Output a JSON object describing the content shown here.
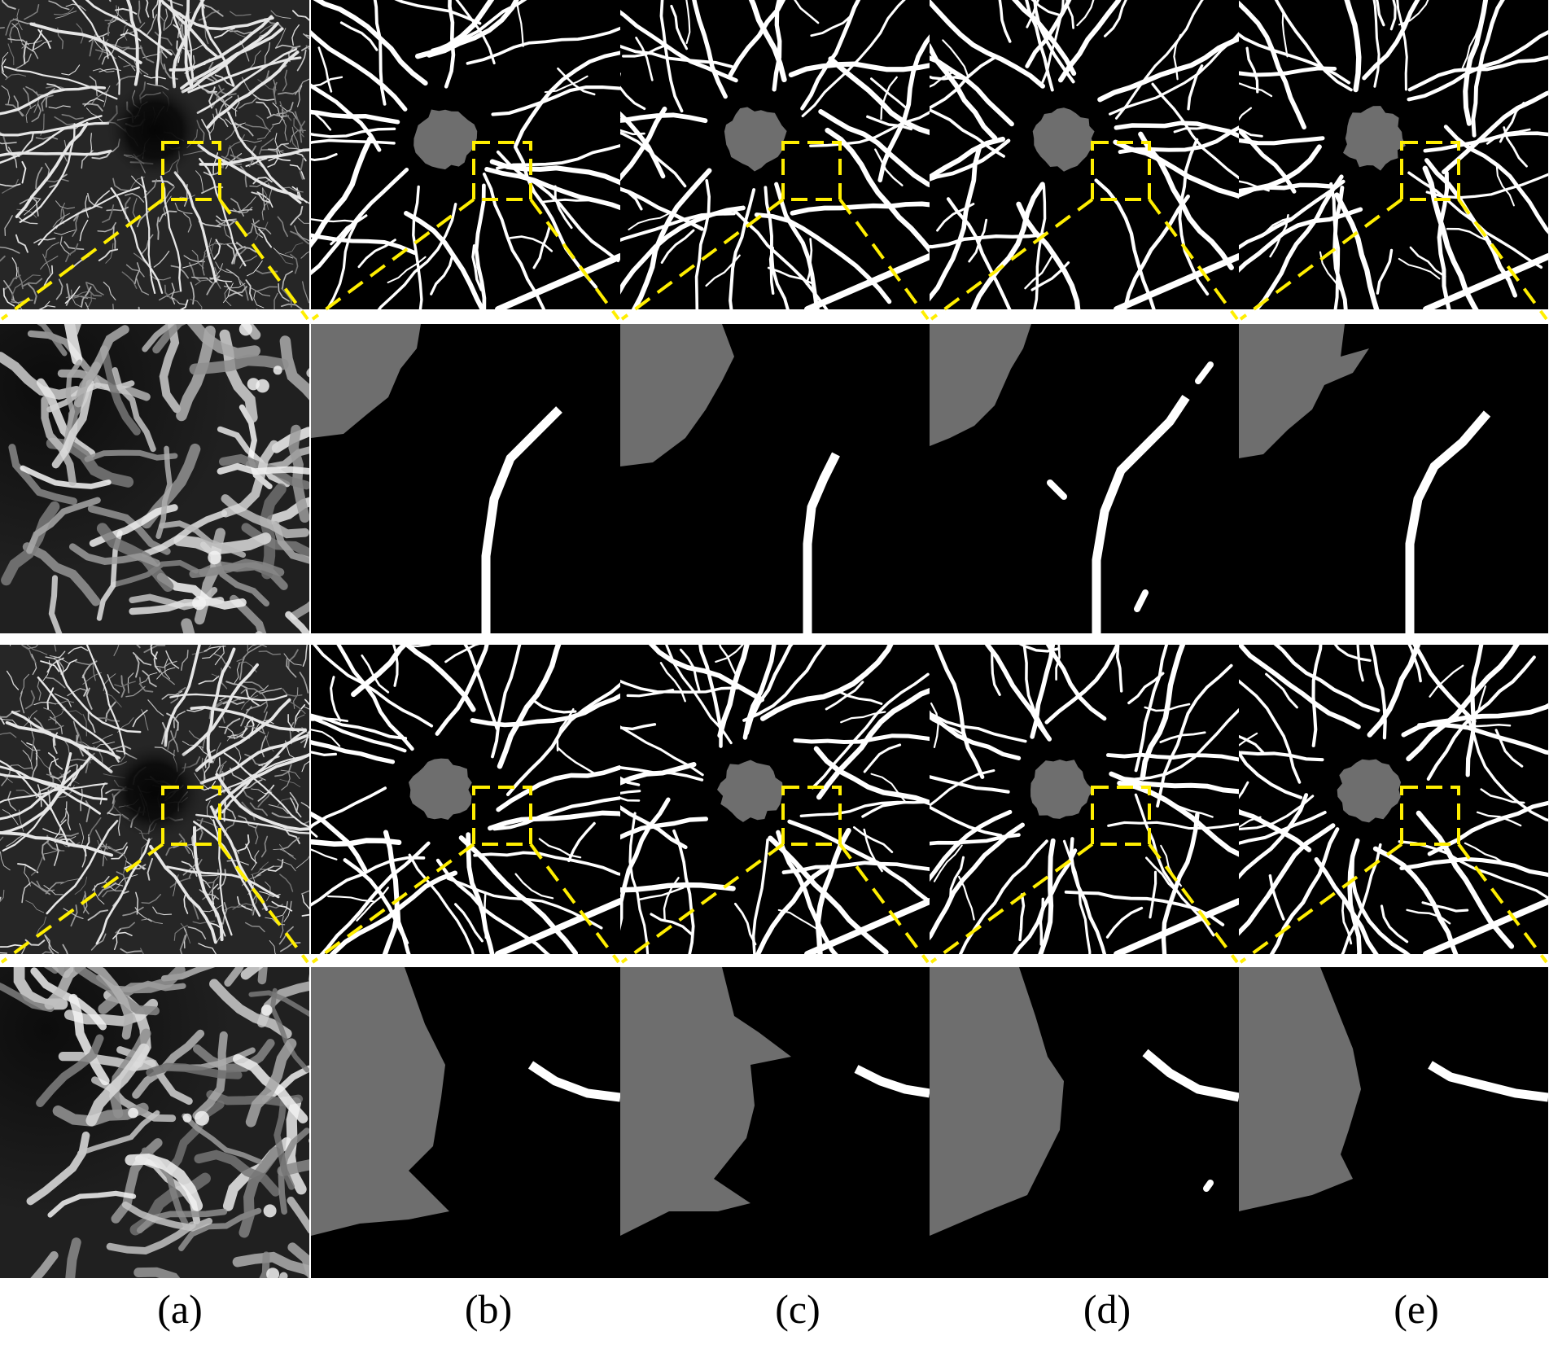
{
  "colors": {
    "background": "#ffffff",
    "panel": "#000000",
    "vessel": "#ffffff",
    "faz": "#6e6e6e",
    "highlight_box": "#ffee00"
  },
  "rows": [
    {
      "name": "case-1-full",
      "kind": "overview",
      "columns": [
        "a",
        "b",
        "c",
        "d",
        "e"
      ]
    },
    {
      "name": "case-1-zoom",
      "kind": "zoom",
      "columns": [
        "a",
        "b",
        "c",
        "d",
        "e"
      ]
    },
    {
      "name": "case-2-full",
      "kind": "overview",
      "columns": [
        "a",
        "b",
        "c",
        "d",
        "e"
      ]
    },
    {
      "name": "case-2-zoom",
      "kind": "zoom",
      "columns": [
        "a",
        "b",
        "c",
        "d",
        "e"
      ]
    }
  ],
  "columns": [
    {
      "id": "a",
      "content": "OCTA image",
      "caption": "(a)"
    },
    {
      "id": "b",
      "content": "segmentation",
      "caption": "(b)"
    },
    {
      "id": "c",
      "content": "segmentation",
      "caption": "(c)"
    },
    {
      "id": "d",
      "content": "segmentation",
      "caption": "(d)"
    },
    {
      "id": "e",
      "content": "segmentation",
      "caption": "(e)"
    }
  ]
}
